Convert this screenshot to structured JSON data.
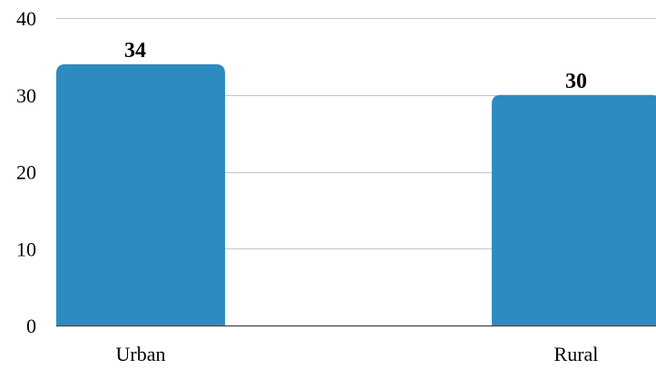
{
  "chart_data": {
    "type": "bar",
    "categories": [
      "Urban",
      "Rural"
    ],
    "values": [
      34,
      30
    ],
    "data_labels": [
      "34",
      "30"
    ],
    "ylim": [
      0,
      40
    ],
    "yticks": [
      0,
      10,
      20,
      30,
      40
    ],
    "ytick_labels": [
      "0",
      "10",
      "20",
      "30",
      "40"
    ],
    "grid": true,
    "legend": "none",
    "bar_color": "#2e8bc0",
    "title": "",
    "xlabel": "",
    "ylabel": ""
  }
}
